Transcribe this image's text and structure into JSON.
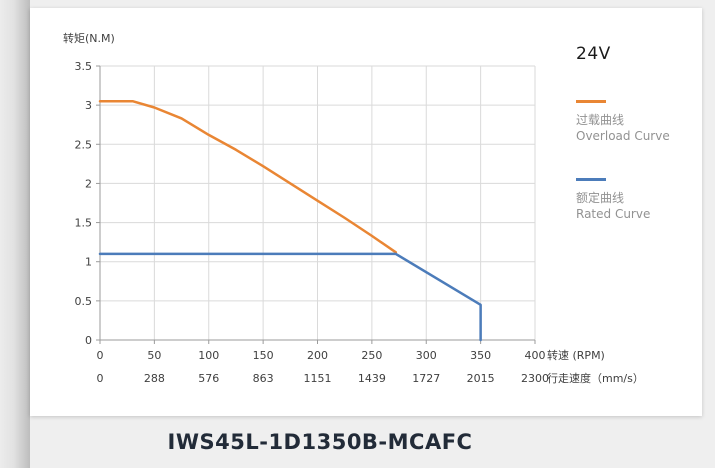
{
  "page": {
    "title": "IWS45L-1D1350B-MCAFC",
    "voltage_label": "24V"
  },
  "chart_data": {
    "type": "line",
    "title": "24V",
    "grid": true,
    "legend_position": "right",
    "x_axis": {
      "label": "转速 (RPM)",
      "range": [
        0,
        400
      ],
      "ticks": [
        0,
        50,
        100,
        150,
        200,
        250,
        300,
        350,
        400
      ]
    },
    "x_axis2": {
      "label": "行走速度（mm/s）",
      "ticks": [
        0,
        288,
        576,
        863,
        1151,
        1439,
        1727,
        2015,
        2300
      ]
    },
    "y_axis": {
      "label": "转矩(N.M)",
      "range": [
        0,
        3.5
      ],
      "ticks": [
        0,
        0.5,
        1,
        1.5,
        2,
        2.5,
        3,
        3.5
      ]
    },
    "series": [
      {
        "name_cn": "过载曲线",
        "name_en": "Overload Curve",
        "color": "#E98634",
        "points": [
          [
            0,
            3.05
          ],
          [
            30,
            3.05
          ],
          [
            50,
            2.97
          ],
          [
            75,
            2.83
          ],
          [
            100,
            2.62
          ],
          [
            125,
            2.43
          ],
          [
            150,
            2.22
          ],
          [
            175,
            2.0
          ],
          [
            200,
            1.78
          ],
          [
            225,
            1.56
          ],
          [
            250,
            1.33
          ],
          [
            272,
            1.12
          ]
        ]
      },
      {
        "name_cn": "额定曲线",
        "name_en": "Rated Curve",
        "color": "#4C7CBA",
        "points": [
          [
            0,
            1.1
          ],
          [
            272,
            1.1
          ],
          [
            350,
            0.45
          ],
          [
            350,
            0
          ]
        ]
      }
    ]
  }
}
